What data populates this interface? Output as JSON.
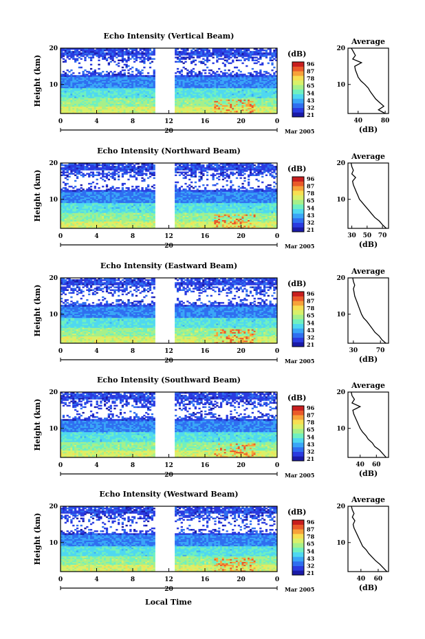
{
  "figure": {
    "colorbar_unit": "(dB)",
    "colorbar_ticks": [
      "96",
      "87",
      "78",
      "65",
      "54",
      "43",
      "32",
      "21"
    ],
    "profile_title": "Average",
    "profile_xlabel": "(dB)",
    "ylabel": "Height (km)",
    "xlabel": "Local Time",
    "date_label": "Mar 2005",
    "day_label": "20",
    "colormap": [
      "#1a1aa6",
      "#2a3be0",
      "#2f6ff0",
      "#3aa6f7",
      "#4fd8f0",
      "#6ff0c0",
      "#a6f08a",
      "#d9f06a",
      "#f7df52",
      "#f7a23a",
      "#ea5a2a",
      "#c81e1e"
    ]
  },
  "chart_data": [
    {
      "type": "heatmap",
      "title": "Echo Intensity (Vertical Beam)",
      "x_ticks": [
        "0",
        "4",
        "8",
        "12",
        "16",
        "20",
        "0"
      ],
      "y_ticks": [
        "20",
        "10"
      ],
      "ylim": [
        2,
        20
      ],
      "xlim": [
        0,
        24
      ],
      "data_gap_hours": [
        10.5,
        12.5
      ],
      "color_range_db": [
        21,
        96
      ],
      "profile": {
        "x_ticks": [
          "40",
          "80"
        ],
        "xlim": [
          25,
          85
        ],
        "height_km": [
          2,
          3,
          4,
          5,
          6,
          7,
          8,
          9,
          10,
          11,
          12,
          13,
          14,
          15,
          16,
          17,
          18,
          19,
          20
        ],
        "db": [
          80,
          70,
          78,
          72,
          66,
          62,
          58,
          55,
          50,
          44,
          40,
          38,
          36,
          35,
          45,
          32,
          36,
          33,
          30
        ]
      }
    },
    {
      "type": "heatmap",
      "title": "Echo Intensity (Northward Beam)",
      "x_ticks": [
        "0",
        "4",
        "8",
        "12",
        "16",
        "20",
        "0"
      ],
      "y_ticks": [
        "20",
        "10"
      ],
      "ylim": [
        2,
        20
      ],
      "xlim": [
        0,
        24
      ],
      "data_gap_hours": [
        10.5,
        12.5
      ],
      "color_range_db": [
        21,
        96
      ],
      "profile": {
        "x_ticks": [
          "30",
          "50",
          "70"
        ],
        "xlim": [
          25,
          78
        ],
        "height_km": [
          2,
          3,
          4,
          5,
          6,
          7,
          8,
          9,
          10,
          11,
          12,
          13,
          14,
          15,
          16,
          17,
          18,
          19,
          20
        ],
        "db": [
          75,
          70,
          66,
          60,
          56,
          52,
          48,
          44,
          40,
          38,
          36,
          34,
          32,
          31,
          35,
          30,
          32,
          30,
          29
        ]
      }
    },
    {
      "type": "heatmap",
      "title": "Echo Intensity (Eastward Beam)",
      "x_ticks": [
        "0",
        "4",
        "8",
        "12",
        "16",
        "20",
        "0"
      ],
      "y_ticks": [
        "20",
        "10"
      ],
      "ylim": [
        2,
        20
      ],
      "xlim": [
        0,
        24
      ],
      "data_gap_hours": [
        10.5,
        12.5
      ],
      "color_range_db": [
        21,
        96
      ],
      "profile": {
        "x_ticks": [
          "30",
          "70"
        ],
        "xlim": [
          22,
          82
        ],
        "height_km": [
          2,
          3,
          4,
          5,
          6,
          7,
          8,
          9,
          10,
          11,
          12,
          13,
          14,
          15,
          16,
          17,
          18,
          19,
          20
        ],
        "db": [
          78,
          72,
          68,
          62,
          58,
          54,
          50,
          45,
          42,
          40,
          38,
          36,
          34,
          32,
          31,
          30,
          32,
          30,
          29
        ]
      }
    },
    {
      "type": "heatmap",
      "title": "Echo Intensity (Southward Beam)",
      "x_ticks": [
        "0",
        "4",
        "8",
        "12",
        "16",
        "20",
        "0"
      ],
      "y_ticks": [
        "20",
        "10"
      ],
      "ylim": [
        2,
        20
      ],
      "xlim": [
        0,
        24
      ],
      "data_gap_hours": [
        10.5,
        12.5
      ],
      "color_range_db": [
        21,
        96
      ],
      "profile": {
        "x_ticks": [
          "40",
          "60"
        ],
        "xlim": [
          25,
          75
        ],
        "height_km": [
          2,
          3,
          4,
          5,
          6,
          7,
          8,
          9,
          10,
          11,
          12,
          13,
          14,
          15,
          16,
          17,
          18,
          19,
          20
        ],
        "db": [
          72,
          68,
          64,
          58,
          55,
          50,
          47,
          43,
          40,
          38,
          36,
          34,
          32,
          31,
          40,
          30,
          33,
          30,
          29
        ]
      }
    },
    {
      "type": "heatmap",
      "title": "Echo Intensity (Westward Beam)",
      "x_ticks": [
        "0",
        "4",
        "8",
        "12",
        "16",
        "20",
        "0"
      ],
      "y_ticks": [
        "20",
        "10"
      ],
      "ylim": [
        2,
        20
      ],
      "xlim": [
        0,
        24
      ],
      "data_gap_hours": [
        10.5,
        12.5
      ],
      "color_range_db": [
        21,
        96
      ],
      "profile": {
        "x_ticks": [
          "40",
          "60"
        ],
        "xlim": [
          25,
          72
        ],
        "height_km": [
          2,
          3,
          4,
          5,
          6,
          7,
          8,
          9,
          10,
          11,
          12,
          13,
          14,
          15,
          16,
          17,
          18,
          19,
          20
        ],
        "db": [
          70,
          66,
          62,
          57,
          53,
          49,
          46,
          42,
          40,
          38,
          36,
          34,
          32,
          31,
          33,
          30,
          32,
          30,
          29
        ]
      }
    }
  ]
}
